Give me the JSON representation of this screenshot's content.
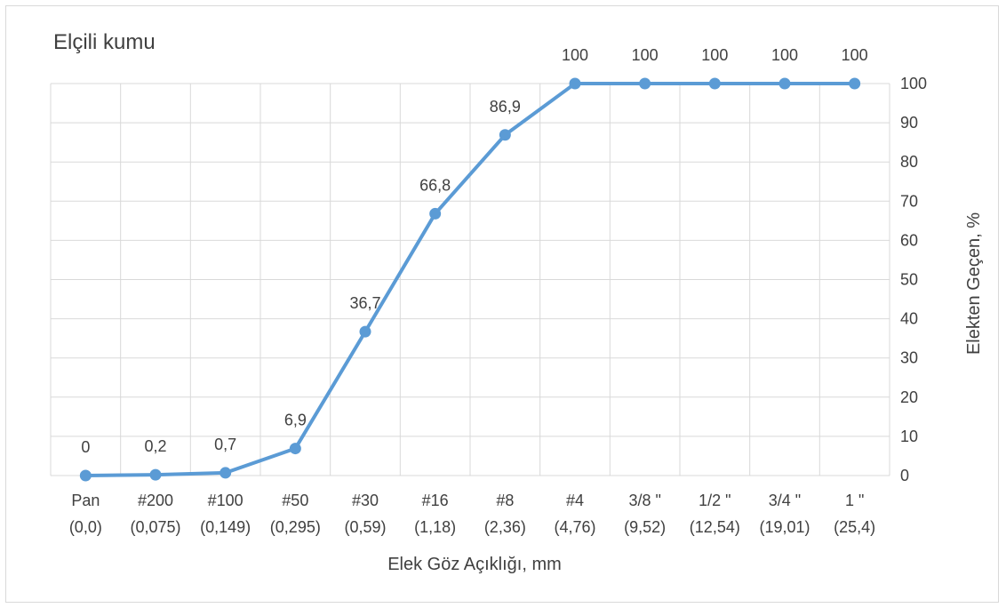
{
  "chart_data": {
    "type": "line",
    "title": "Elçili kumu",
    "xlabel": "Elek Göz Açıklığı, mm",
    "ylabel": "Elekten Geçen, %",
    "categories": [
      [
        "Pan",
        "(0,0)"
      ],
      [
        "#200",
        "(0,075)"
      ],
      [
        "#100",
        "(0,149)"
      ],
      [
        "#50",
        "(0,295)"
      ],
      [
        "#30",
        "(0,59)"
      ],
      [
        "#16",
        "(1,18)"
      ],
      [
        "#8",
        "(2,36)"
      ],
      [
        "#4",
        "(4,76)"
      ],
      [
        "3/8 \"",
        "(9,52)"
      ],
      [
        "1/2 \"",
        "(12,54)"
      ],
      [
        "3/4 \"",
        "(19,01)"
      ],
      [
        "1 \"",
        "(25,4)"
      ]
    ],
    "series": [
      {
        "values": [
          0,
          0.2,
          0.7,
          6.9,
          36.7,
          66.8,
          86.9,
          100,
          100,
          100,
          100,
          100
        ],
        "data_labels": [
          "0",
          "0,2",
          "0,7",
          "6,9",
          "36,7",
          "66,8",
          "86,9",
          "100",
          "100",
          "100",
          "100",
          "100"
        ],
        "color": "#5b9bd5"
      }
    ],
    "ylim": [
      0,
      100
    ],
    "yticks": [
      0,
      10,
      20,
      30,
      40,
      50,
      60,
      70,
      80,
      90,
      100
    ],
    "y_axis_side": "right",
    "grid": true,
    "gridline_color": "#d9d9d9"
  }
}
